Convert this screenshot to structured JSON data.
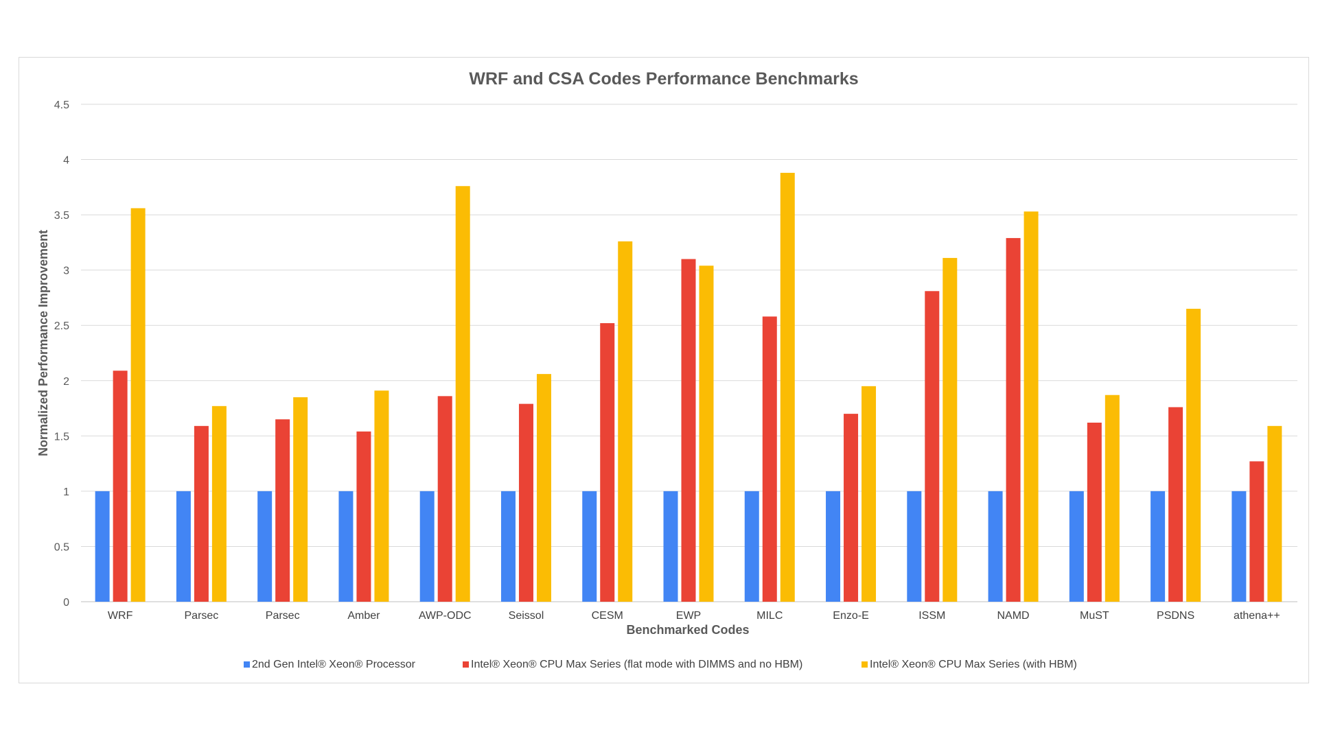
{
  "chart_data": {
    "type": "bar",
    "title": "WRF and CSA Codes Performance Benchmarks",
    "xlabel": "Benchmarked Codes",
    "ylabel": "Normalized Performance Improvement",
    "ylim": [
      0,
      4.5
    ],
    "yticks": [
      "0",
      "0.5",
      "1",
      "1.5",
      "2",
      "2.5",
      "3",
      "3.5",
      "4",
      "4.5"
    ],
    "grid": true,
    "legend_position": "bottom",
    "categories": [
      "WRF",
      "Parsec",
      "Parsec",
      "Amber",
      "AWP-ODC",
      "Seissol",
      "CESM",
      "EWP",
      "MILC",
      "Enzo-E",
      "ISSM",
      "NAMD",
      "MuST",
      "PSDNS",
      "athena++"
    ],
    "series": [
      {
        "name": "2nd Gen Intel® Xeon® Processor",
        "color": "#4285f4",
        "values": [
          1,
          1,
          1,
          1,
          1,
          1,
          1,
          1,
          1,
          1,
          1,
          1,
          1,
          1,
          1
        ]
      },
      {
        "name": "Intel® Xeon® CPU Max Series  (flat mode with DIMMS and no HBM)",
        "color": "#ea4335",
        "values": [
          2.09,
          1.59,
          1.65,
          1.54,
          1.86,
          1.79,
          2.52,
          3.1,
          2.58,
          1.7,
          2.81,
          3.29,
          1.62,
          1.76,
          1.27
        ]
      },
      {
        "name": "Intel® Xeon® CPU Max Series (with HBM)",
        "color": "#fbbc04",
        "values": [
          3.56,
          1.77,
          1.85,
          1.91,
          3.76,
          2.06,
          3.26,
          3.04,
          3.88,
          1.95,
          3.11,
          3.53,
          1.87,
          2.65,
          1.59
        ]
      }
    ]
  }
}
